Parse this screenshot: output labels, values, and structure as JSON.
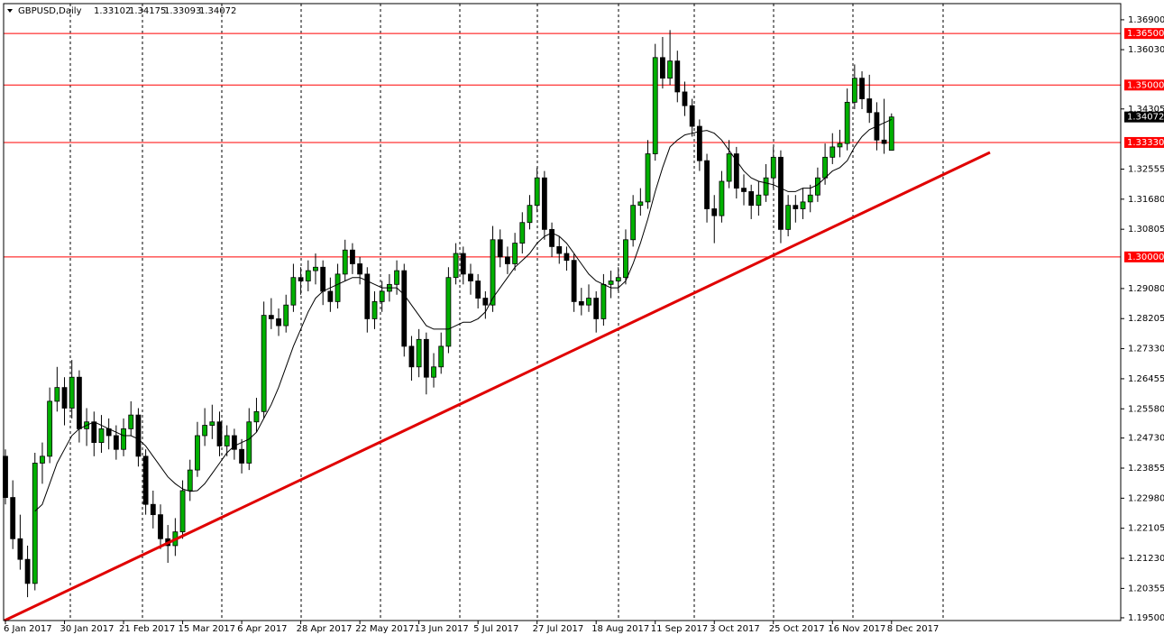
{
  "chart_data": {
    "type": "candlestick",
    "title": "GBPUSD,Daily",
    "ylim": [
      1.1942,
      1.3737
    ],
    "yticks": [
      {
        "value": 1.369,
        "label": "1.36900"
      },
      {
        "value": 1.3603,
        "label": "1.36030"
      },
      {
        "value": 1.34305,
        "label": "1.34305"
      },
      {
        "value": 1.32555,
        "label": "1.32555"
      },
      {
        "value": 1.3168,
        "label": "1.31680"
      },
      {
        "value": 1.30805,
        "label": "1.30805"
      },
      {
        "value": 1.2908,
        "label": "1.29080"
      },
      {
        "value": 1.28205,
        "label": "1.28205"
      },
      {
        "value": 1.2733,
        "label": "1.27330"
      },
      {
        "value": 1.26455,
        "label": "1.26455"
      },
      {
        "value": 1.2558,
        "label": "1.25580"
      },
      {
        "value": 1.2473,
        "label": "1.24730"
      },
      {
        "value": 1.23855,
        "label": "1.23855"
      },
      {
        "value": 1.2298,
        "label": "1.22980"
      },
      {
        "value": 1.22105,
        "label": "1.22105"
      },
      {
        "value": 1.2123,
        "label": "1.21230"
      },
      {
        "value": 1.20355,
        "label": "1.20355"
      },
      {
        "value": 1.195,
        "label": "1.19500"
      }
    ],
    "xticks": [
      {
        "value": 0,
        "label": "6 Jan 2017"
      },
      {
        "value": 8,
        "label": "30 Jan 2017"
      },
      {
        "value": 16,
        "label": "21 Feb 2017"
      },
      {
        "value": 24,
        "label": "15 Mar 2017"
      },
      {
        "value": 32,
        "label": "6 Apr 2017"
      },
      {
        "value": 40,
        "label": "28 Apr 2017"
      },
      {
        "value": 48,
        "label": "22 May 2017"
      },
      {
        "value": 56,
        "label": "13 Jun 2017"
      },
      {
        "value": 64,
        "label": "5 Jul 2017"
      },
      {
        "value": 72,
        "label": "27 Jul 2017"
      },
      {
        "value": 80,
        "label": "18 Aug 2017"
      },
      {
        "value": 88,
        "label": "11 Sep 2017"
      },
      {
        "value": 96,
        "label": "3 Oct 2017"
      },
      {
        "value": 104,
        "label": "25 Oct 2017"
      },
      {
        "value": 112,
        "label": "16 Nov 2017"
      },
      {
        "value": 120,
        "label": "8 Dec 2017"
      }
    ],
    "levels": [
      {
        "value": 1.365,
        "label": "1.36500"
      },
      {
        "value": 1.35,
        "label": "1.35000"
      },
      {
        "value": 1.3333,
        "label": "1.33330"
      },
      {
        "value": 1.3,
        "label": "1.30000"
      }
    ],
    "level_color": "#ff0000",
    "bull_color": "#00b000",
    "bear_color": "#000000",
    "ma_color": "#000000",
    "ohlc": [
      [
        1.242,
        1.244,
        1.228,
        1.23
      ],
      [
        1.23,
        1.235,
        1.215,
        1.218
      ],
      [
        1.218,
        1.225,
        1.209,
        1.212
      ],
      [
        1.212,
        1.216,
        1.201,
        1.205
      ],
      [
        1.205,
        1.243,
        1.203,
        1.24
      ],
      [
        1.24,
        1.246,
        1.234,
        1.242
      ],
      [
        1.242,
        1.262,
        1.24,
        1.258
      ],
      [
        1.258,
        1.268,
        1.255,
        1.262
      ],
      [
        1.262,
        1.265,
        1.251,
        1.256
      ],
      [
        1.256,
        1.27,
        1.253,
        1.265
      ],
      [
        1.265,
        1.267,
        1.246,
        1.25
      ],
      [
        1.25,
        1.256,
        1.245,
        1.252
      ],
      [
        1.252,
        1.255,
        1.242,
        1.246
      ],
      [
        1.246,
        1.254,
        1.243,
        1.25
      ],
      [
        1.25,
        1.253,
        1.244,
        1.248
      ],
      [
        1.248,
        1.251,
        1.241,
        1.244
      ],
      [
        1.244,
        1.253,
        1.242,
        1.25
      ],
      [
        1.25,
        1.258,
        1.248,
        1.254
      ],
      [
        1.254,
        1.256,
        1.239,
        1.242
      ],
      [
        1.242,
        1.244,
        1.225,
        1.228
      ],
      [
        1.228,
        1.232,
        1.221,
        1.225
      ],
      [
        1.225,
        1.228,
        1.215,
        1.218
      ],
      [
        1.218,
        1.222,
        1.211,
        1.216
      ],
      [
        1.216,
        1.224,
        1.213,
        1.22
      ],
      [
        1.22,
        1.235,
        1.218,
        1.232
      ],
      [
        1.232,
        1.241,
        1.229,
        1.238
      ],
      [
        1.238,
        1.252,
        1.236,
        1.248
      ],
      [
        1.248,
        1.256,
        1.245,
        1.251
      ],
      [
        1.251,
        1.257,
        1.247,
        1.252
      ],
      [
        1.252,
        1.255,
        1.242,
        1.245
      ],
      [
        1.245,
        1.251,
        1.242,
        1.248
      ],
      [
        1.248,
        1.25,
        1.241,
        1.244
      ],
      [
        1.244,
        1.247,
        1.237,
        1.24
      ],
      [
        1.24,
        1.256,
        1.238,
        1.252
      ],
      [
        1.252,
        1.259,
        1.249,
        1.255
      ],
      [
        1.255,
        1.287,
        1.253,
        1.283
      ],
      [
        1.283,
        1.288,
        1.279,
        1.282
      ],
      [
        1.282,
        1.285,
        1.277,
        1.28
      ],
      [
        1.28,
        1.289,
        1.278,
        1.286
      ],
      [
        1.286,
        1.298,
        1.284,
        1.294
      ],
      [
        1.294,
        1.297,
        1.289,
        1.293
      ],
      [
        1.293,
        1.299,
        1.29,
        1.296
      ],
      [
        1.296,
        1.301,
        1.292,
        1.297
      ],
      [
        1.297,
        1.299,
        1.286,
        1.29
      ],
      [
        1.29,
        1.294,
        1.284,
        1.287
      ],
      [
        1.287,
        1.298,
        1.285,
        1.295
      ],
      [
        1.295,
        1.305,
        1.293,
        1.302
      ],
      [
        1.302,
        1.304,
        1.295,
        1.298
      ],
      [
        1.298,
        1.3,
        1.292,
        1.295
      ],
      [
        1.295,
        1.297,
        1.278,
        1.282
      ],
      [
        1.282,
        1.29,
        1.279,
        1.287
      ],
      [
        1.287,
        1.293,
        1.284,
        1.29
      ],
      [
        1.29,
        1.295,
        1.287,
        1.292
      ],
      [
        1.292,
        1.299,
        1.289,
        1.296
      ],
      [
        1.296,
        1.298,
        1.271,
        1.274
      ],
      [
        1.274,
        1.277,
        1.264,
        1.268
      ],
      [
        1.268,
        1.279,
        1.265,
        1.276
      ],
      [
        1.276,
        1.278,
        1.26,
        1.265
      ],
      [
        1.265,
        1.272,
        1.262,
        1.268
      ],
      [
        1.268,
        1.278,
        1.266,
        1.274
      ],
      [
        1.274,
        1.297,
        1.272,
        1.294
      ],
      [
        1.294,
        1.304,
        1.292,
        1.301
      ],
      [
        1.301,
        1.303,
        1.292,
        1.295
      ],
      [
        1.295,
        1.298,
        1.289,
        1.293
      ],
      [
        1.293,
        1.295,
        1.285,
        1.288
      ],
      [
        1.288,
        1.29,
        1.282,
        1.286
      ],
      [
        1.286,
        1.309,
        1.284,
        1.305
      ],
      [
        1.305,
        1.308,
        1.297,
        1.3
      ],
      [
        1.3,
        1.303,
        1.295,
        1.298
      ],
      [
        1.298,
        1.307,
        1.296,
        1.304
      ],
      [
        1.304,
        1.313,
        1.301,
        1.31
      ],
      [
        1.31,
        1.318,
        1.308,
        1.315
      ],
      [
        1.315,
        1.326,
        1.313,
        1.323
      ],
      [
        1.323,
        1.325,
        1.305,
        1.308
      ],
      [
        1.308,
        1.31,
        1.3,
        1.303
      ],
      [
        1.303,
        1.306,
        1.298,
        1.301
      ],
      [
        1.301,
        1.303,
        1.296,
        1.299
      ],
      [
        1.299,
        1.301,
        1.284,
        1.287
      ],
      [
        1.287,
        1.291,
        1.283,
        1.286
      ],
      [
        1.286,
        1.292,
        1.284,
        1.288
      ],
      [
        1.288,
        1.29,
        1.278,
        1.282
      ],
      [
        1.282,
        1.295,
        1.28,
        1.292
      ],
      [
        1.292,
        1.296,
        1.288,
        1.293
      ],
      [
        1.293,
        1.297,
        1.29,
        1.294
      ],
      [
        1.294,
        1.308,
        1.292,
        1.305
      ],
      [
        1.305,
        1.318,
        1.303,
        1.315
      ],
      [
        1.315,
        1.32,
        1.312,
        1.316
      ],
      [
        1.316,
        1.334,
        1.314,
        1.33
      ],
      [
        1.33,
        1.362,
        1.328,
        1.358
      ],
      [
        1.358,
        1.364,
        1.349,
        1.352
      ],
      [
        1.352,
        1.366,
        1.35,
        1.357
      ],
      [
        1.357,
        1.36,
        1.345,
        1.348
      ],
      [
        1.348,
        1.351,
        1.341,
        1.344
      ],
      [
        1.344,
        1.346,
        1.335,
        1.338
      ],
      [
        1.338,
        1.34,
        1.325,
        1.328
      ],
      [
        1.328,
        1.33,
        1.31,
        1.314
      ],
      [
        1.314,
        1.318,
        1.304,
        1.312
      ],
      [
        1.312,
        1.325,
        1.31,
        1.322
      ],
      [
        1.322,
        1.334,
        1.32,
        1.33
      ],
      [
        1.33,
        1.332,
        1.317,
        1.32
      ],
      [
        1.32,
        1.324,
        1.315,
        1.319
      ],
      [
        1.319,
        1.321,
        1.311,
        1.315
      ],
      [
        1.315,
        1.322,
        1.312,
        1.318
      ],
      [
        1.318,
        1.327,
        1.316,
        1.323
      ],
      [
        1.323,
        1.332,
        1.32,
        1.329
      ],
      [
        1.329,
        1.331,
        1.304,
        1.308
      ],
      [
        1.308,
        1.318,
        1.306,
        1.315
      ],
      [
        1.315,
        1.318,
        1.31,
        1.314
      ],
      [
        1.314,
        1.32,
        1.311,
        1.316
      ],
      [
        1.316,
        1.321,
        1.313,
        1.318
      ],
      [
        1.318,
        1.326,
        1.316,
        1.323
      ],
      [
        1.323,
        1.333,
        1.321,
        1.329
      ],
      [
        1.329,
        1.336,
        1.327,
        1.332
      ],
      [
        1.332,
        1.337,
        1.329,
        1.333
      ],
      [
        1.333,
        1.349,
        1.331,
        1.345
      ],
      [
        1.345,
        1.356,
        1.343,
        1.352
      ],
      [
        1.352,
        1.354,
        1.343,
        1.346
      ],
      [
        1.346,
        1.353,
        1.339,
        1.342
      ],
      [
        1.342,
        1.345,
        1.331,
        1.334
      ],
      [
        1.334,
        1.346,
        1.33,
        1.333
      ],
      [
        1.33102,
        1.34175,
        1.33093,
        1.34072
      ]
    ],
    "moving_average": [
      null,
      null,
      null,
      null,
      1.226,
      1.228,
      1.234,
      1.24,
      1.244,
      1.248,
      1.25,
      1.251,
      1.252,
      1.251,
      1.25,
      1.249,
      1.248,
      1.248,
      1.247,
      1.245,
      1.242,
      1.239,
      1.236,
      1.234,
      1.2325,
      1.2318,
      1.232,
      1.234,
      1.237,
      1.24,
      1.243,
      1.245,
      1.246,
      1.247,
      1.249,
      1.253,
      1.257,
      1.262,
      1.268,
      1.274,
      1.279,
      1.284,
      1.288,
      1.29,
      1.291,
      1.292,
      1.293,
      1.294,
      1.294,
      1.293,
      1.292,
      1.291,
      1.291,
      1.291,
      1.289,
      1.286,
      1.283,
      1.28,
      1.279,
      1.279,
      1.279,
      1.28,
      1.281,
      1.281,
      1.282,
      1.284,
      1.288,
      1.291,
      1.294,
      1.297,
      1.299,
      1.301,
      1.304,
      1.306,
      1.307,
      1.306,
      1.304,
      1.301,
      1.298,
      1.295,
      1.293,
      1.292,
      1.291,
      1.291,
      1.293,
      1.298,
      1.304,
      1.311,
      1.319,
      1.326,
      1.332,
      1.334,
      1.3355,
      1.336,
      1.3365,
      1.3368,
      1.336,
      1.334,
      1.331,
      1.328,
      1.325,
      1.323,
      1.322,
      1.3215,
      1.321,
      1.32,
      1.319,
      1.319,
      1.32,
      1.32,
      1.321,
      1.323,
      1.325,
      1.326,
      1.328,
      1.332,
      1.335,
      1.337,
      1.338,
      1.339,
      1.34
    ]
  }
}
